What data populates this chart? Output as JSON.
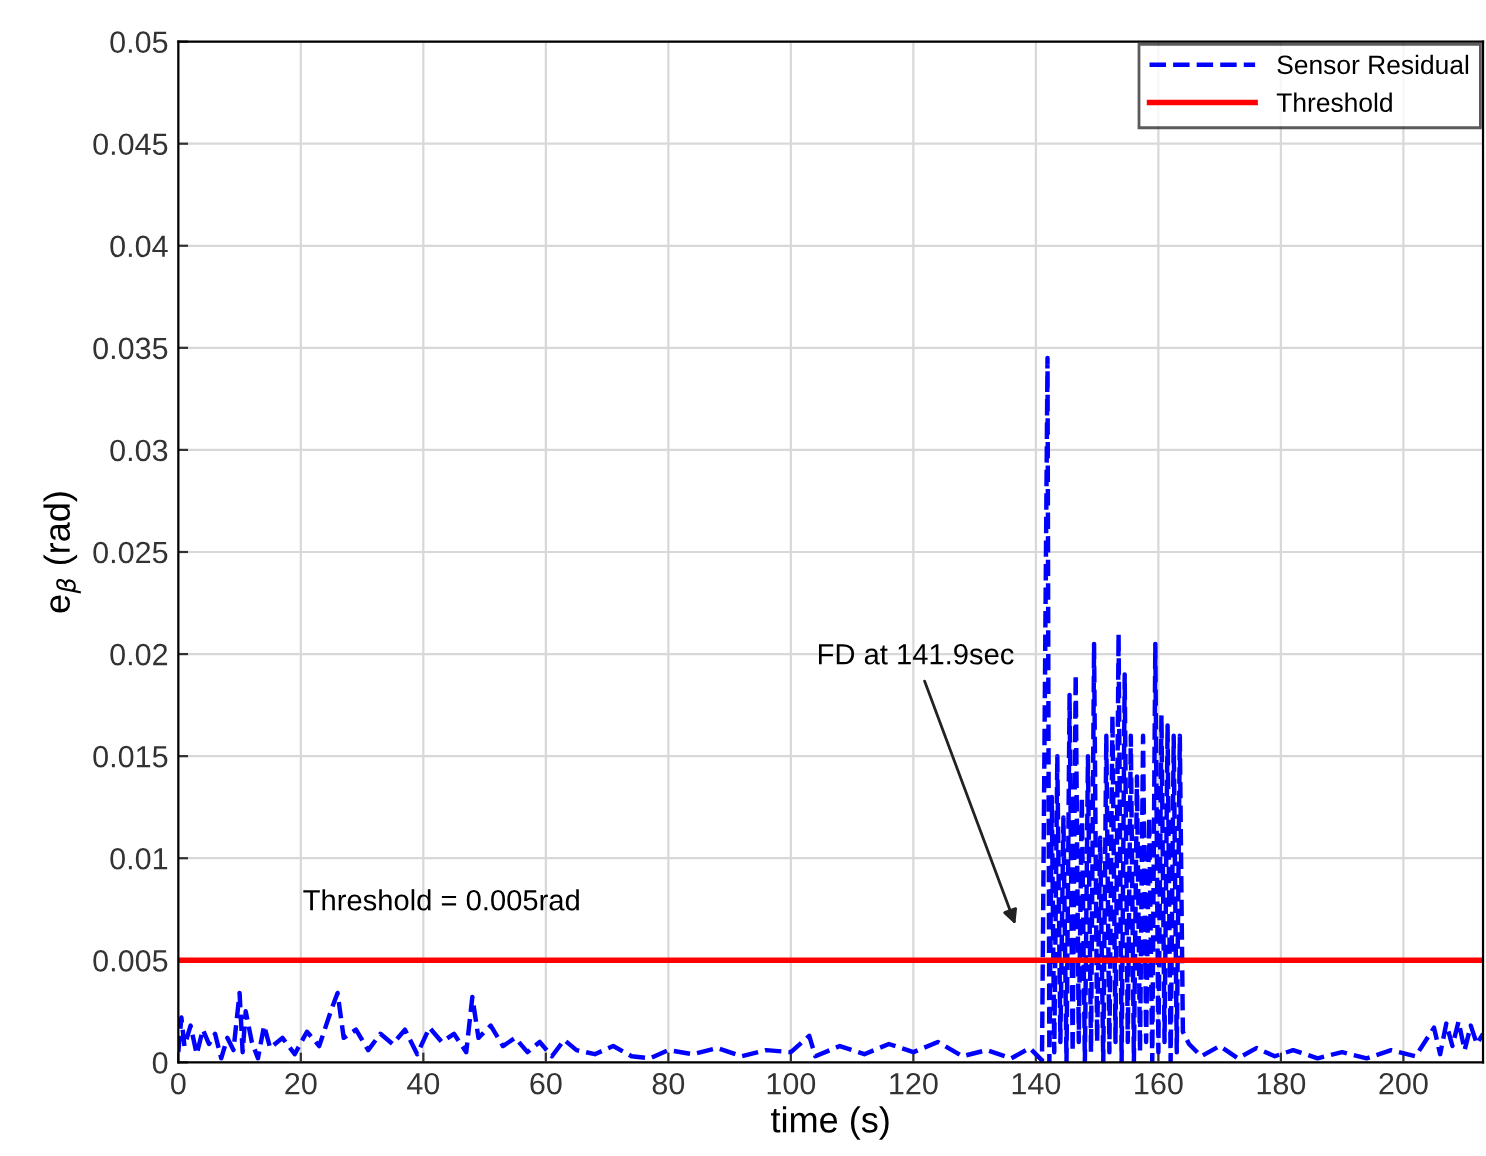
{
  "chart_data": {
    "type": "line",
    "xlabel": "time (s)",
    "ylabel": "e$_{β}$ (rad)",
    "xlim": [
      0,
      213
    ],
    "xticks": [
      0,
      20,
      40,
      60,
      80,
      100,
      120,
      140,
      160,
      180,
      200
    ],
    "ylim": [
      0,
      0.05
    ],
    "yticks": [
      0,
      0.005,
      0.01,
      0.015,
      0.02,
      0.025,
      0.03,
      0.035,
      0.04,
      0.045,
      0.05
    ],
    "grid": true,
    "legend": "top right",
    "series": [
      {
        "name": "Sensor Residual",
        "color": "#0000ff",
        "line_style": "dashed",
        "x": [
          0,
          0.5,
          1,
          2,
          3,
          4,
          5,
          6,
          7,
          8,
          9,
          10,
          10.5,
          11,
          12,
          13,
          14,
          15,
          17,
          19,
          21,
          23,
          25,
          26,
          27,
          29,
          31,
          33,
          35,
          37,
          39,
          41,
          43,
          45,
          47,
          48,
          49,
          51,
          53,
          55,
          57,
          59,
          61,
          63,
          65,
          68,
          71,
          74,
          77,
          80,
          84,
          88,
          92,
          96,
          100,
          103,
          104,
          108,
          112,
          116,
          120,
          124,
          128,
          132,
          136,
          139,
          141,
          141.9,
          142.2,
          142.6,
          143,
          143.5,
          144,
          144.5,
          145,
          145.5,
          146,
          146.5,
          147,
          147.5,
          148,
          148.5,
          149,
          149.5,
          150,
          150.5,
          151,
          151.5,
          152,
          152.5,
          153,
          153.5,
          154,
          154.5,
          155,
          155.5,
          156,
          156.5,
          157,
          157.5,
          158,
          158.5,
          159,
          159.5,
          160,
          160.5,
          161,
          161.5,
          162,
          162.5,
          163,
          163.5,
          164,
          165,
          167,
          170,
          173,
          176,
          179,
          182,
          186,
          190,
          194,
          198,
          202,
          205,
          206,
          207,
          208,
          209,
          210,
          211,
          212,
          213
        ],
        "values": [
          0.0005,
          0.0022,
          0.0008,
          0.0018,
          0.0004,
          0.0016,
          0.0009,
          0.0014,
          0.0002,
          0.0012,
          0.0006,
          0.0034,
          0.0005,
          0.0025,
          0.001,
          0.0002,
          0.0018,
          0.0007,
          0.0012,
          0.0004,
          0.0015,
          0.0008,
          0.0026,
          0.0034,
          0.0012,
          0.0016,
          0.0006,
          0.0014,
          0.0009,
          0.0016,
          0.0004,
          0.0017,
          0.001,
          0.0014,
          0.0005,
          0.0032,
          0.0012,
          0.0018,
          0.0008,
          0.0012,
          0.0005,
          0.001,
          0.0003,
          0.0011,
          0.0006,
          0.0004,
          0.0008,
          0.0003,
          0.0002,
          0.0006,
          0.0004,
          0.0007,
          0.0003,
          0.0006,
          0.0005,
          0.0013,
          0.0003,
          0.0008,
          0.0004,
          0.0009,
          0.0005,
          0.001,
          0.0003,
          0.0006,
          0.0002,
          0.0007,
          0.0001,
          0.0345,
          0.0,
          0.013,
          0.0005,
          0.015,
          0.001,
          0.012,
          0.0,
          0.018,
          0.0005,
          0.019,
          0.001,
          0.013,
          0.0,
          0.015,
          0.0005,
          0.0205,
          0.001,
          0.011,
          0.0,
          0.016,
          0.0005,
          0.017,
          0.001,
          0.021,
          0.0,
          0.019,
          0.001,
          0.016,
          0.0,
          0.014,
          0.0005,
          0.016,
          0.001,
          0.012,
          0.0,
          0.0205,
          0.0005,
          0.017,
          0.001,
          0.0165,
          0.0,
          0.016,
          0.0005,
          0.016,
          0.0015,
          0.0009,
          0.0003,
          0.0008,
          0.0002,
          0.0007,
          0.0003,
          0.0006,
          0.0002,
          0.0005,
          0.0002,
          0.0006,
          0.0003,
          0.0017,
          0.0004,
          0.0019,
          0.0008,
          0.002,
          0.0006,
          0.0018,
          0.0009,
          0.0014
        ]
      },
      {
        "name": "Threshold",
        "color": "#ff0000",
        "line_style": "solid",
        "x": [
          0,
          213
        ],
        "values": [
          0.005,
          0.005
        ]
      }
    ],
    "annotations": [
      {
        "text": "Threshold = 0.005rad",
        "x": 43,
        "y": 0.005
      },
      "FD at 141.9sec"
    ]
  }
}
